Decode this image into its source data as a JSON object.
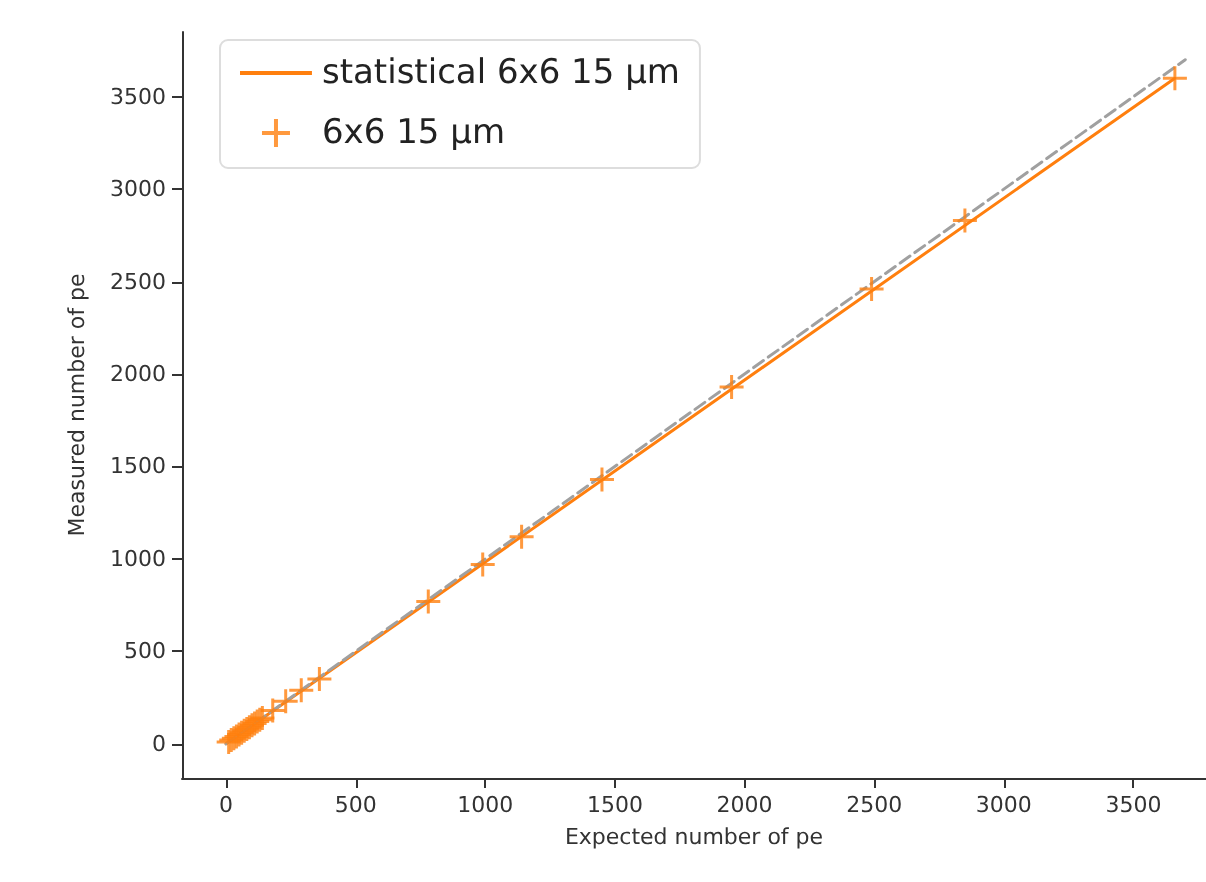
{
  "chart_data": {
    "type": "scatter",
    "xlabel": "Expected number of pe",
    "ylabel": "Measured number of pe",
    "xlim": [
      -170,
      3780
    ],
    "ylim": [
      -185,
      3850
    ],
    "xticks": [
      0,
      500,
      1000,
      1500,
      2000,
      2500,
      3000,
      3500
    ],
    "yticks": [
      0,
      500,
      1000,
      1500,
      2000,
      2500,
      3000,
      3500
    ],
    "grid": false,
    "legend": "top left",
    "series": [
      {
        "type": "line",
        "name": "statistical 6x6 15 µm",
        "color": "#ff7f0e",
        "x": [
          0,
          3660
        ],
        "values": [
          0,
          3600
        ],
        "marker": "none",
        "line_style": "solid"
      },
      {
        "type": "line",
        "color": "#a0a0a0",
        "x": [
          0,
          3700
        ],
        "values": [
          0,
          3700
        ],
        "marker": "none",
        "line_style": "dashed"
      },
      {
        "type": "scatter",
        "name": "6x6 15 µm",
        "color": "#ff7f0e",
        "marker": "cross",
        "x": [
          10,
          20,
          30,
          40,
          50,
          60,
          70,
          80,
          90,
          100,
          110,
          120,
          130,
          140,
          180,
          230,
          290,
          360,
          780,
          990,
          1140,
          1450,
          1950,
          2490,
          2850,
          3660
        ],
        "values": [
          10,
          20,
          30,
          40,
          50,
          60,
          70,
          80,
          90,
          100,
          110,
          120,
          130,
          140,
          180,
          230,
          290,
          350,
          770,
          970,
          1120,
          1430,
          1930,
          2460,
          2830,
          3600
        ]
      }
    ]
  }
}
